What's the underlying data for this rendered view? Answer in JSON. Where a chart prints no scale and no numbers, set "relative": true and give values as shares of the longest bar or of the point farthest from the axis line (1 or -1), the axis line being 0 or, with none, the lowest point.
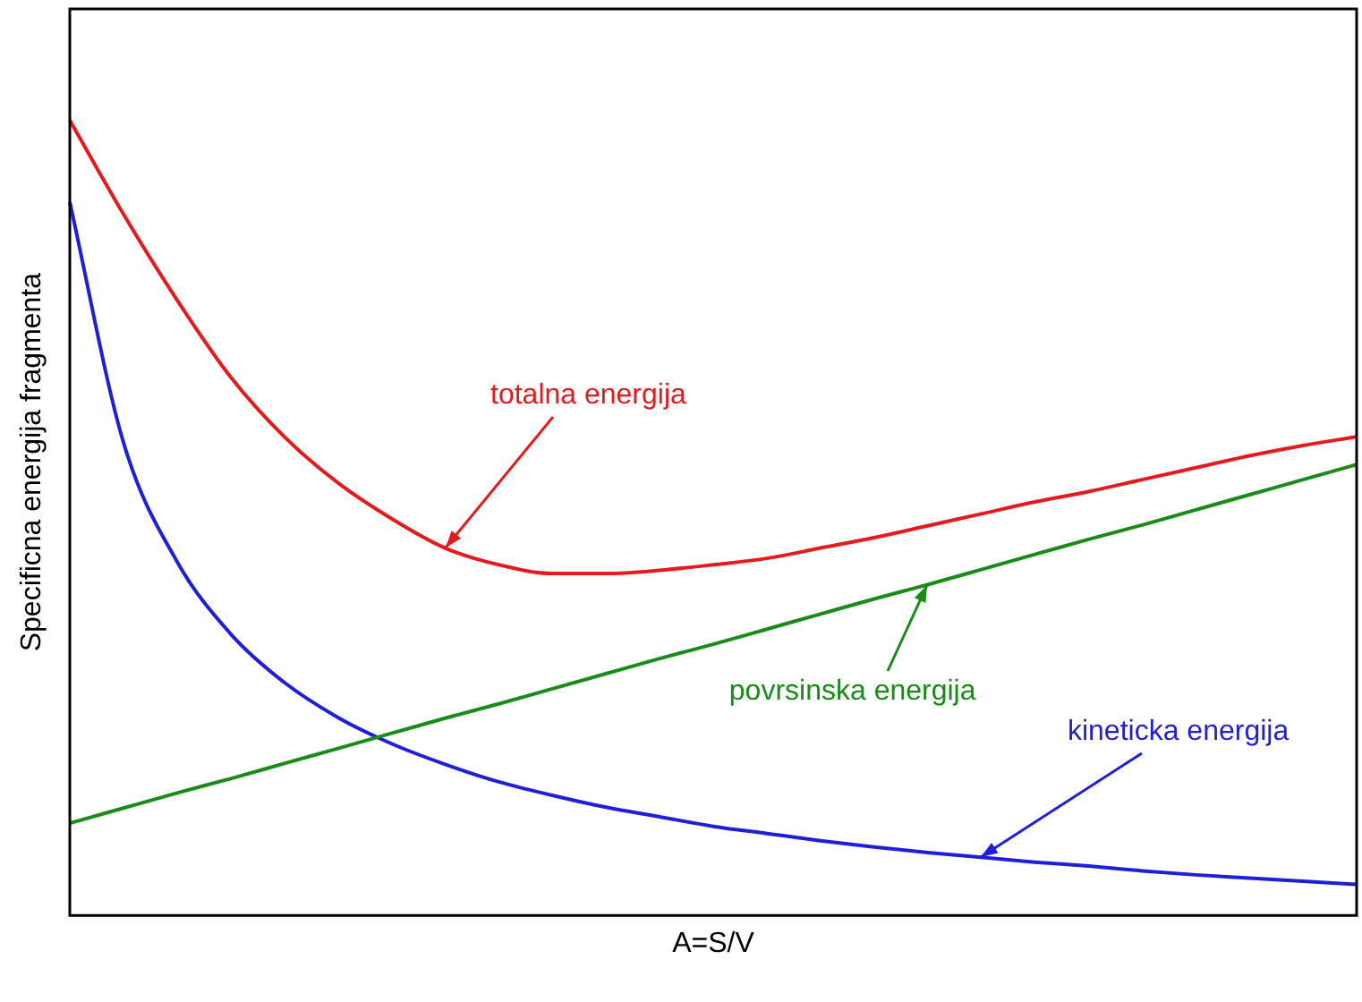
{
  "chart_data": {
    "type": "line",
    "relative": true,
    "xlabel": "A=S/V",
    "ylabel": "Specificna energija fragmenta",
    "legend": false,
    "grid": false,
    "marker": "none",
    "line_style": "solid",
    "categories": [
      null,
      null,
      null,
      null,
      null,
      null,
      null,
      null,
      null,
      null,
      null,
      null,
      null,
      null,
      null,
      null,
      null,
      null,
      null,
      null,
      null,
      null,
      null,
      null,
      null
    ],
    "series": [
      {
        "name": "totalna energija",
        "color": "#e41a1c",
        "values": [
          1,
          0.882,
          0.774,
          0.677,
          0.602,
          0.544,
          0.499,
          0.462,
          0.441,
          0.43,
          0.43,
          0.434,
          0.441,
          0.449,
          0.462,
          0.475,
          0.49,
          0.505,
          0.52,
          0.533,
          0.548,
          0.563,
          0.578,
          0.591,
          0.602
        ]
      },
      {
        "name": "povrsinska energija",
        "color": "#1a8a1a",
        "values": [
          0.116,
          0.135,
          0.154,
          0.172,
          0.191,
          0.21,
          0.229,
          0.248,
          0.266,
          0.285,
          0.304,
          0.323,
          0.341,
          0.36,
          0.379,
          0.398,
          0.416,
          0.435,
          0.454,
          0.473,
          0.491,
          0.51,
          0.529,
          0.548,
          0.567
        ]
      },
      {
        "name": "kineticka energija",
        "color": "#1f1fd8",
        "values": [
          0.897,
          0.595,
          0.445,
          0.354,
          0.293,
          0.249,
          0.216,
          0.19,
          0.168,
          0.151,
          0.136,
          0.124,
          0.112,
          0.103,
          0.094,
          0.086,
          0.079,
          0.073,
          0.067,
          0.062,
          0.056,
          0.051,
          0.047,
          0.043,
          0.039
        ]
      }
    ]
  }
}
